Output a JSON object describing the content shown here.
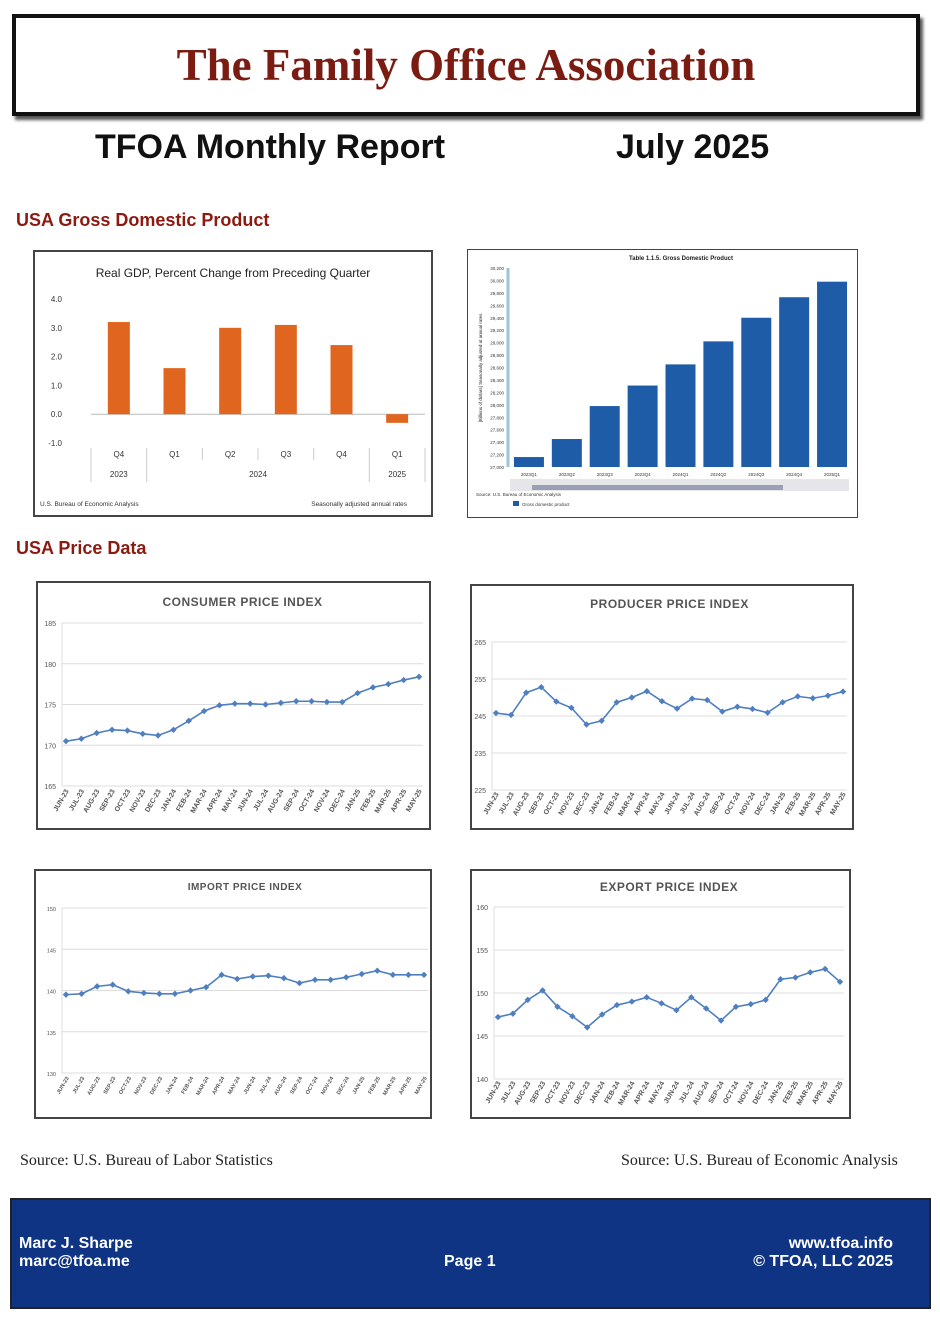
{
  "header": {
    "org_title": "The Family Office Association",
    "report_title": "TFOA Monthly Report",
    "report_date": "July 2025"
  },
  "sections": {
    "gdp": "USA Gross Domestic Product",
    "price": "USA Price Data"
  },
  "sources": {
    "left": "Source: U.S. Bureau of Labor Statistics",
    "right": "Source: U.S. Bureau of Economic Analysis"
  },
  "footer": {
    "name": "Marc J. Sharpe",
    "email": "marc@tfoa.me",
    "page": "Page 1",
    "website": "www.tfoa.info",
    "copyright": "© TFOA, LLC 2025"
  },
  "colors": {
    "orange_bar": "#e0651f",
    "blue_bar": "#1f5ca8",
    "line": "#4f7fc0",
    "title_red": "#7b1c12",
    "footer_blue": "#0e3483"
  },
  "chart_data": [
    {
      "id": "gdp_growth",
      "type": "bar",
      "title": "Real GDP, Percent Change from Preceding Quarter",
      "categories": [
        "Q4",
        "Q1",
        "Q2",
        "Q3",
        "Q4",
        "Q1"
      ],
      "year_groups": [
        {
          "label": "2023",
          "span": 1
        },
        {
          "label": "2024",
          "span": 4
        },
        {
          "label": "2025",
          "span": 1
        }
      ],
      "values": [
        3.2,
        1.6,
        3.0,
        3.1,
        2.4,
        -0.3
      ],
      "ylim": [
        -1.0,
        4.0
      ],
      "yticks": [
        "4.0",
        "3.0",
        "2.0",
        "1.0",
        "0.0",
        "-1.0"
      ],
      "footnote_left": "U.S. Bureau of Economic Analysis",
      "footnote_right": "Seasonally adjusted annual rates",
      "color": "#e0651f"
    },
    {
      "id": "gdp_level",
      "type": "bar",
      "title": "Table 1.1.5. Gross Domestic Product",
      "ylabel": "[Billions of dollars] Seasonally adjusted at annual rates",
      "categories": [
        "2023Q1",
        "2023Q2",
        "2023Q3",
        "2023Q4",
        "2024Q1",
        "2024Q2",
        "2024Q3",
        "2024Q4",
        "2025Q1"
      ],
      "values": [
        27160,
        27450,
        27980,
        28310,
        28650,
        29020,
        29400,
        29730,
        29980
      ],
      "ylim": [
        27000,
        30200
      ],
      "yticks": [
        "30,200",
        "30,000",
        "29,800",
        "29,600",
        "29,400",
        "29,200",
        "29,000",
        "28,800",
        "28,600",
        "28,400",
        "28,200",
        "28,000",
        "27,800",
        "27,600",
        "27,400",
        "27,200",
        "27,000"
      ],
      "source": "Source: U.S. Bureau of Economic Analysis",
      "legend": "Gross domestic product",
      "color": "#1f5ca8"
    },
    {
      "id": "cpi",
      "type": "line",
      "title": "CONSUMER PRICE INDEX",
      "categories": [
        "JUN-23",
        "JUL-23",
        "AUG-23",
        "SEP-23",
        "OCT-23",
        "NOV-23",
        "DEC-23",
        "JAN-24",
        "FEB-24",
        "MAR-24",
        "APR-24",
        "MAY-24",
        "JUN-24",
        "JUL-24",
        "AUG-24",
        "SEP-24",
        "OCT-24",
        "NOV-24",
        "DEC-24",
        "JAN-25",
        "FEB-25",
        "MAR-25",
        "APR-25",
        "MAY-25"
      ],
      "values": [
        170.5,
        170.8,
        171.5,
        171.9,
        171.8,
        171.4,
        171.2,
        171.9,
        173.0,
        174.2,
        174.9,
        175.1,
        175.1,
        175.0,
        175.2,
        175.4,
        175.4,
        175.3,
        175.3,
        176.4,
        177.1,
        177.5,
        178.0,
        178.4
      ],
      "ylim": [
        165,
        185
      ],
      "yticks": [
        "185",
        "180",
        "175",
        "170",
        "165"
      ],
      "color": "#4f7fc0"
    },
    {
      "id": "ppi",
      "type": "line",
      "title": "PRODUCER PRICE INDEX",
      "categories": [
        "JUN-23",
        "JUL-23",
        "AUG-23",
        "SEP-23",
        "OCT-23",
        "NOV-23",
        "DEC-23",
        "JAN-24",
        "FEB-24",
        "MAR-24",
        "APR-24",
        "MAY-24",
        "JUN-24",
        "JUL-24",
        "AUG-24",
        "SEP-24",
        "OCT-24",
        "NOV-24",
        "DEC-24",
        "JAN-25",
        "FEB-25",
        "MAR-25",
        "APR-25",
        "MAY-25"
      ],
      "values": [
        245.8,
        245.3,
        251.3,
        252.8,
        248.9,
        247.2,
        242.7,
        243.7,
        248.7,
        250.0,
        251.7,
        249.0,
        247.0,
        249.7,
        249.3,
        246.2,
        247.5,
        246.9,
        245.9,
        248.7,
        250.3,
        249.8,
        250.5,
        251.6
      ],
      "ylim": [
        225,
        265
      ],
      "yticks": [
        "265",
        "255",
        "245",
        "235",
        "225"
      ],
      "color": "#4f7fc0"
    },
    {
      "id": "import",
      "type": "line",
      "title": "IMPORT PRICE INDEX",
      "categories": [
        "JUN-23",
        "JUL-23",
        "AUG-23",
        "SEP-23",
        "OCT-23",
        "NOV-23",
        "DEC-23",
        "JAN-24",
        "FEB-24",
        "MAR-24",
        "APR-24",
        "MAY-24",
        "JUN-24",
        "JUL-24",
        "AUG-24",
        "SEP-24",
        "OCT-24",
        "NOV-24",
        "DEC-24",
        "JAN-25",
        "FEB-25",
        "MAR-25",
        "APR-25",
        "MAY-25"
      ],
      "values": [
        139.5,
        139.6,
        140.5,
        140.7,
        139.9,
        139.7,
        139.6,
        139.6,
        140.0,
        140.4,
        141.9,
        141.4,
        141.7,
        141.8,
        141.5,
        140.9,
        141.3,
        141.3,
        141.6,
        142.0,
        142.4,
        141.9,
        141.9,
        141.9
      ],
      "ylim": [
        130,
        150
      ],
      "yticks": [
        "150",
        "145",
        "140",
        "135",
        "130"
      ],
      "color": "#4f7fc0"
    },
    {
      "id": "export",
      "type": "line",
      "title": "EXPORT PRICE INDEX",
      "categories": [
        "JUN-23",
        "JUL-23",
        "AUG-23",
        "SEP-23",
        "OCT-23",
        "NOV-23",
        "DEC-23",
        "JAN-24",
        "FEB-24",
        "MAR-24",
        "APR-24",
        "MAY-24",
        "JUN-24",
        "JUL-24",
        "AUG-24",
        "SEP-24",
        "OCT-24",
        "NOV-24",
        "DEC-24",
        "JAN-25",
        "FEB-25",
        "MAR-25",
        "APR-25",
        "MAY-25"
      ],
      "values": [
        147.2,
        147.6,
        149.2,
        150.3,
        148.4,
        147.3,
        146.0,
        147.5,
        148.6,
        149.0,
        149.5,
        148.8,
        148.0,
        149.5,
        148.2,
        146.8,
        148.4,
        148.7,
        149.2,
        151.6,
        151.8,
        152.4,
        152.8,
        151.3
      ],
      "ylim": [
        140,
        160
      ],
      "yticks": [
        "160",
        "155",
        "150",
        "145",
        "140"
      ],
      "color": "#4f7fc0"
    }
  ]
}
